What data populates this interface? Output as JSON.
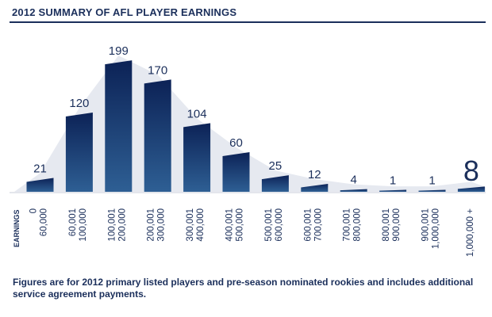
{
  "title": "2012 SUMMARY OF AFL PLAYER EARNINGS",
  "footnote": "Figures are for 2012 primary listed players and pre-season nominated rookies and includes additional service agreement payments.",
  "colors": {
    "bar_top": "#0c2256",
    "bar_bottom": "#2e5f94",
    "area": "#e6e9f0",
    "text": "#1b2f5b"
  },
  "chart_data": {
    "type": "bar",
    "title": "2012 SUMMARY OF AFL PLAYER EARNINGS",
    "xlabel": "EARNINGS",
    "ylabel": "",
    "ylim": [
      0,
      210
    ],
    "categories": [
      [
        "0",
        "60,000"
      ],
      [
        "60,001",
        "100,000"
      ],
      [
        "100,001",
        "200,000"
      ],
      [
        "200,001",
        "300,000"
      ],
      [
        "300,001",
        "400,000"
      ],
      [
        "400,001",
        "500,000"
      ],
      [
        "500,001",
        "600,000"
      ],
      [
        "600,001",
        "700,000"
      ],
      [
        "700,001",
        "800,000"
      ],
      [
        "800,001",
        "900,000"
      ],
      [
        "900,001",
        "1,000,000"
      ],
      [
        "1,000,000 +"
      ]
    ],
    "values": [
      21,
      120,
      199,
      170,
      104,
      60,
      25,
      12,
      4,
      1,
      1,
      8
    ],
    "data_labels": [
      "21",
      "120",
      "199",
      "170",
      "104",
      "60",
      "25",
      "12",
      "4",
      "1",
      "1",
      "8"
    ],
    "grid": false,
    "legend": "none"
  }
}
